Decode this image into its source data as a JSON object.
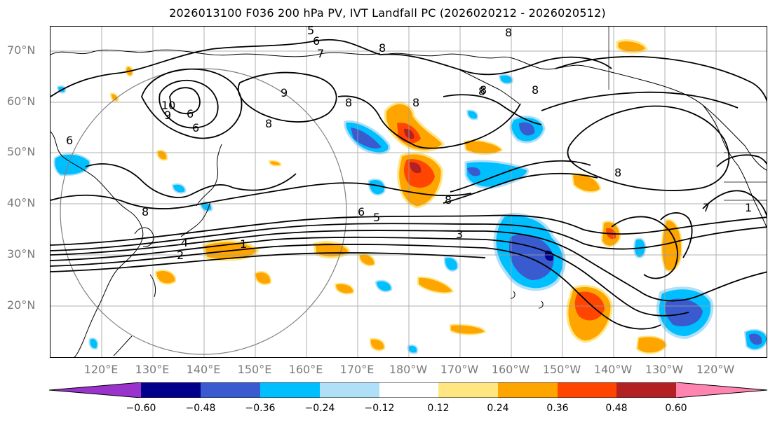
{
  "title": "2026013100 F036 200 hPa PV, IVT Landfall PC (2026020212 - 2026020512)",
  "lat_labels": [
    "70°N",
    "60°N",
    "50°N",
    "40°N",
    "30°N",
    "20°N"
  ],
  "lon_labels": [
    "120°E",
    "130°E",
    "140°E",
    "150°E",
    "160°E",
    "170°E",
    "180°W",
    "170°W",
    "160°W",
    "150°W",
    "140°W",
    "130°W",
    "120°W"
  ],
  "contour_labels": [
    "5",
    "6",
    "7",
    "8",
    "8",
    "9",
    "10",
    "6",
    "9",
    "8",
    "6",
    "8",
    "8",
    "8",
    "8",
    "6",
    "5",
    "3",
    "1",
    "2",
    "4",
    "8",
    "6",
    "8",
    "8",
    "8",
    "7",
    "1"
  ],
  "colorbar": {
    "ticks": [
      "−0.60",
      "−0.48",
      "−0.36",
      "−0.24",
      "−0.12",
      "0.12",
      "0.24",
      "0.36",
      "0.48",
      "0.60"
    ],
    "colors": [
      "#9933cc",
      "#00008b",
      "#3a5bd0",
      "#00bfff",
      "#b0e0f8",
      "#ffffff",
      "#ffe680",
      "#ffa500",
      "#ff4500",
      "#b22222",
      "#ff85b0"
    ]
  },
  "fill_colors": {
    "neg_light": "#b0e0f8",
    "neg_mid": "#00bfff",
    "neg_dark": "#3a5bd0",
    "neg_deep": "#00008b",
    "pos_light": "#ffe680",
    "pos_mid": "#ffa500",
    "pos_dark": "#ff4500",
    "pos_deep": "#b22222"
  }
}
